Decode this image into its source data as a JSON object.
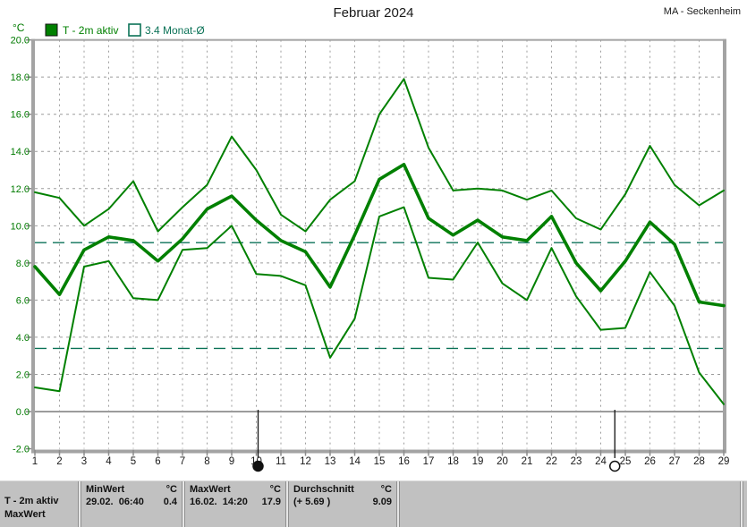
{
  "header": {
    "title": "Februar 2024",
    "station": "MA - Seckenheim"
  },
  "legend": {
    "unit_label": "°C",
    "items": [
      {
        "label": "T - 2m aktiv",
        "swatch": "filled",
        "color": "#008000"
      },
      {
        "label": "3.4 Monat-Ø",
        "swatch": "outline",
        "color": "#0b7257"
      }
    ]
  },
  "chart_data": {
    "type": "line",
    "title": "Februar 2024",
    "station": "MA - Seckenheim",
    "unit": "°C",
    "x": [
      1,
      2,
      3,
      4,
      5,
      6,
      7,
      8,
      9,
      10,
      11,
      12,
      13,
      14,
      15,
      16,
      17,
      18,
      19,
      20,
      21,
      22,
      23,
      24,
      25,
      26,
      27,
      28,
      29
    ],
    "series": [
      {
        "name": "max",
        "thick": false,
        "values": [
          11.8,
          11.5,
          10.0,
          10.9,
          12.4,
          9.7,
          11.0,
          12.2,
          14.8,
          13.0,
          10.6,
          9.7,
          11.4,
          12.4,
          16.0,
          17.9,
          14.2,
          11.9,
          12.0,
          11.9,
          11.4,
          11.9,
          10.4,
          9.8,
          11.7,
          14.3,
          12.2,
          11.1,
          11.9
        ]
      },
      {
        "name": "mean",
        "thick": true,
        "values": [
          7.8,
          6.3,
          8.7,
          9.4,
          9.2,
          8.1,
          9.3,
          10.9,
          11.6,
          10.3,
          9.2,
          8.6,
          6.7,
          9.5,
          12.5,
          13.3,
          10.4,
          9.5,
          10.3,
          9.4,
          9.2,
          10.5,
          8.0,
          6.5,
          8.1,
          10.2,
          9.0,
          5.9,
          5.7
        ]
      },
      {
        "name": "min",
        "thick": false,
        "values": [
          1.3,
          1.1,
          7.8,
          8.1,
          6.1,
          6.0,
          8.7,
          8.8,
          10.0,
          7.4,
          7.3,
          6.8,
          2.9,
          5.0,
          10.5,
          11.0,
          7.2,
          7.1,
          9.1,
          6.9,
          6.0,
          8.8,
          6.2,
          4.4,
          4.5,
          7.5,
          5.7,
          2.1,
          0.4
        ]
      }
    ],
    "reference_lines": [
      {
        "name": "monats-durchschnitt-aktuell",
        "value": 9.09
      },
      {
        "name": "monats-durchschnitt-langjaehrig",
        "value": 3.4
      }
    ],
    "moon_markers": [
      {
        "day": 10,
        "phase": "new"
      },
      {
        "day": 24.5,
        "phase": "full"
      }
    ],
    "ylim": [
      -2,
      20
    ],
    "y_step": 2,
    "y_tick_labels": [
      "20.0",
      "18.0",
      "16.0",
      "14.0",
      "12.0",
      "10.0",
      "8.0",
      "6.0",
      "4.0",
      "2.0",
      "0.0",
      "-2.0"
    ],
    "grid": true,
    "legend_position": "top-left",
    "series_color": "#008000",
    "reference_color": "#0b7257",
    "grid_color": "#9c9c9c",
    "frame_color": "#a3a3a3",
    "y_label_color": "#007a00",
    "x_label_color": "#1a1a1a"
  },
  "stats_bar": {
    "row_label_line1": "T - 2m aktiv",
    "row_label_line2": "MaxWert",
    "cells": [
      {
        "header": "MinWert",
        "unit": "°C",
        "value_left": "29.02.  06:40",
        "value_right": "0.4"
      },
      {
        "header": "MaxWert",
        "unit": "°C",
        "value_left": "16.02.  14:20",
        "value_right": "17.9"
      },
      {
        "header": "Durchschnitt",
        "unit": "°C",
        "value_left": "(+ 5.69 )",
        "value_right": "9.09"
      }
    ]
  }
}
